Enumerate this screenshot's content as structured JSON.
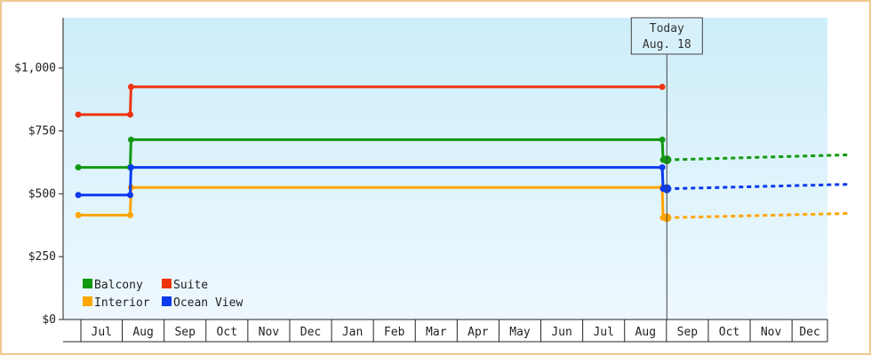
{
  "chart_data": {
    "type": "line",
    "title": "",
    "xlabel": "",
    "ylabel": "",
    "ylim": [
      0,
      1200
    ],
    "y_ticks": [
      0,
      250,
      500,
      750,
      1000
    ],
    "y_tick_labels": [
      "$0",
      "$250",
      "$500",
      "$750",
      "$1,000"
    ],
    "month_labels": [
      "Jul",
      "Aug",
      "Sep",
      "Oct",
      "Nov",
      "Dec",
      "Jan",
      "Feb",
      "Mar",
      "Apr",
      "May",
      "Jun",
      "Jul",
      "Aug",
      "Sep",
      "Oct",
      "Nov",
      "Dec"
    ],
    "today": {
      "line1": "Today",
      "line2": "Aug. 18",
      "x": 13.51
    },
    "x_start": -0.55,
    "x_end": 17.9,
    "grid": false,
    "legend_placement": "bottom-left",
    "background_gradient": [
      "#cdeefa",
      "#eef8fe"
    ],
    "series": [
      {
        "name": "Balcony",
        "color": "#119911",
        "x": [
          -0.55,
          0.69,
          0.69,
          0.71,
          13.4,
          13.42,
          13.51
        ],
        "y": [
          605,
          605,
          605,
          715,
          715,
          635,
          635
        ],
        "forecast": {
          "x": [
            13.51,
            17.9
          ],
          "y": [
            635,
            655
          ]
        }
      },
      {
        "name": "Suite",
        "color": "#ee3311",
        "x": [
          -0.55,
          0.69,
          0.71,
          13.4
        ],
        "y": [
          815,
          815,
          925,
          925
        ]
      },
      {
        "name": "Interior",
        "color": "#ffa500",
        "x": [
          -0.55,
          0.69,
          0.71,
          13.4,
          13.42,
          13.51
        ],
        "y": [
          415,
          415,
          525,
          525,
          405,
          405
        ],
        "forecast": {
          "x": [
            13.51,
            17.9
          ],
          "y": [
            405,
            422
          ]
        }
      },
      {
        "name": "Ocean View",
        "color": "#0a3aee",
        "x": [
          -0.55,
          0.69,
          0.71,
          13.4,
          13.42,
          13.51
        ],
        "y": [
          495,
          495,
          605,
          605,
          520,
          520
        ],
        "forecast": {
          "x": [
            13.51,
            17.9
          ],
          "y": [
            520,
            538
          ]
        }
      }
    ]
  }
}
